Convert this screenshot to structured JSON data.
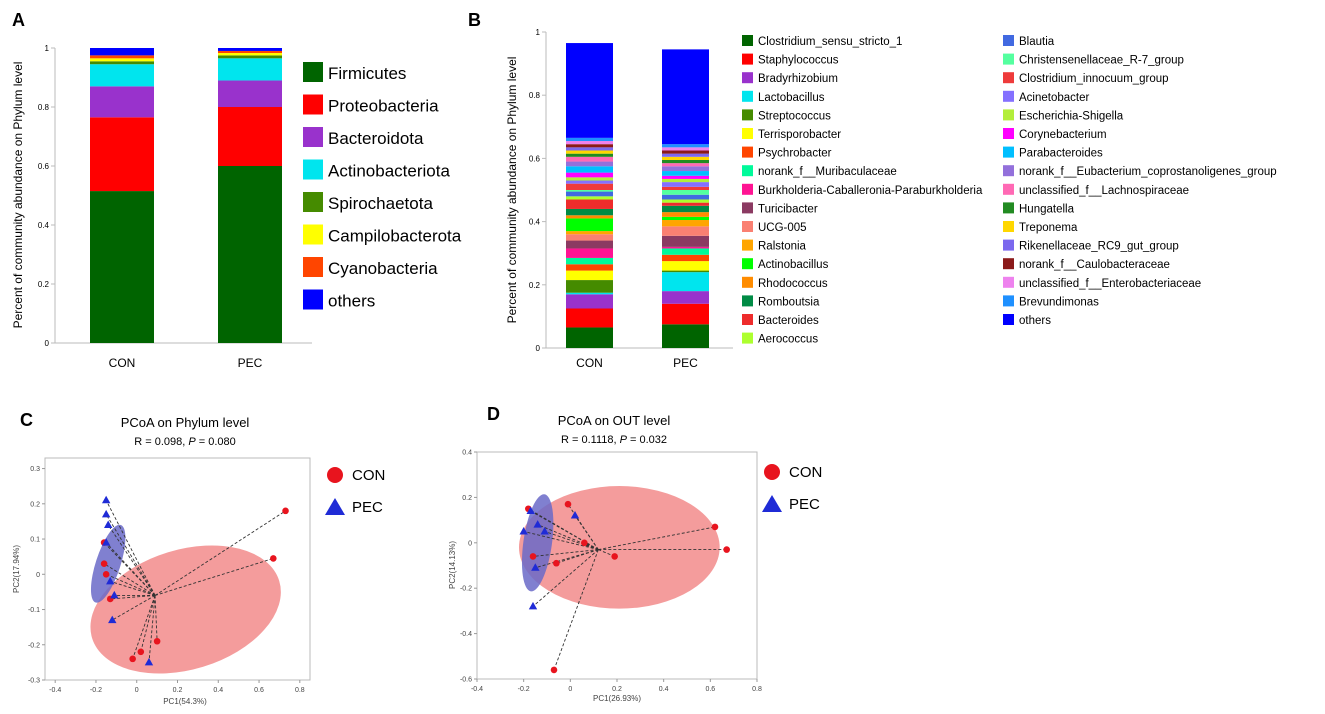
{
  "panels": {
    "A": {
      "letter": "A",
      "chart_data": {
        "type": "bar",
        "stacked": true,
        "title": "",
        "xlabel": "",
        "ylabel": "Percent of community abundance on Phylum level",
        "ylim": [
          0,
          1
        ],
        "yticks": [
          0,
          0.2,
          0.4,
          0.6,
          0.8,
          1
        ],
        "ytick_labels": [
          "0",
          "0.2",
          "0.4",
          "0.6",
          "0.8",
          "1"
        ],
        "categories": [
          "CON",
          "PEC"
        ],
        "series": [
          {
            "name": "Firmicutes",
            "color": "#006400",
            "values": [
              0.515,
              0.6
            ]
          },
          {
            "name": "Proteobacteria",
            "color": "#ff0000",
            "values": [
              0.25,
              0.2
            ]
          },
          {
            "name": "Bacteroidota",
            "color": "#9932cc",
            "values": [
              0.105,
              0.09
            ]
          },
          {
            "name": "Actinobacteriota",
            "color": "#00e5ee",
            "values": [
              0.075,
              0.075
            ]
          },
          {
            "name": "Spirochaetota",
            "color": "#458b00",
            "values": [
              0.01,
              0.01
            ]
          },
          {
            "name": "Campilobacterota",
            "color": "#ffff00",
            "values": [
              0.01,
              0.008
            ]
          },
          {
            "name": "Cyanobacteria",
            "color": "#ff4500",
            "values": [
              0.01,
              0.007
            ]
          },
          {
            "name": "others",
            "color": "#0000ff",
            "values": [
              0.025,
              0.01
            ]
          }
        ]
      }
    },
    "B": {
      "letter": "B",
      "chart_data": {
        "type": "bar",
        "stacked": true,
        "title": "",
        "xlabel": "",
        "ylabel": "Percent of community abundance on Phylum level",
        "ylim": [
          0,
          1
        ],
        "yticks": [
          0,
          0.2,
          0.4,
          0.6,
          0.8,
          1
        ],
        "ytick_labels": [
          "0",
          "0.2",
          "0.4",
          "0.6",
          "0.8",
          "1"
        ],
        "categories": [
          "CON",
          "PEC"
        ],
        "series": [
          {
            "name": "Clostridium_sensu_stricto_1",
            "color": "#006400",
            "values": [
              0.065,
              0.075
            ]
          },
          {
            "name": "Staphylococcus",
            "color": "#ff0000",
            "values": [
              0.06,
              0.065
            ]
          },
          {
            "name": "Bradyrhizobium",
            "color": "#9932cc",
            "values": [
              0.045,
              0.04
            ]
          },
          {
            "name": "Lactobacillus",
            "color": "#00e5ee",
            "values": [
              0.005,
              0.06
            ]
          },
          {
            "name": "Streptococcus",
            "color": "#458b00",
            "values": [
              0.04,
              0.005
            ]
          },
          {
            "name": "Terrisporobacter",
            "color": "#ffff00",
            "values": [
              0.03,
              0.03
            ]
          },
          {
            "name": "Psychrobacter",
            "color": "#ff4500",
            "values": [
              0.02,
              0.02
            ]
          },
          {
            "name": "norank_f__Muribaculaceae",
            "color": "#00fa9a",
            "values": [
              0.02,
              0.02
            ]
          },
          {
            "name": "Burkholderia-Caballeronia-Paraburkholderia",
            "color": "#ff1493",
            "values": [
              0.03,
              0.005
            ]
          },
          {
            "name": "Turicibacter",
            "color": "#8b3a62",
            "values": [
              0.025,
              0.035
            ]
          },
          {
            "name": "UCG-005",
            "color": "#fa8072",
            "values": [
              0.02,
              0.03
            ]
          },
          {
            "name": "Ralstonia",
            "color": "#ffa500",
            "values": [
              0.01,
              0.02
            ]
          },
          {
            "name": "Actinobacillus",
            "color": "#00ff00",
            "values": [
              0.04,
              0.01
            ]
          },
          {
            "name": "Rhodococcus",
            "color": "#ff8c00",
            "values": [
              0.01,
              0.015
            ]
          },
          {
            "name": "Romboutsia",
            "color": "#008b45",
            "values": [
              0.02,
              0.02
            ]
          },
          {
            "name": "Bacteroides",
            "color": "#ee2c2c",
            "values": [
              0.03,
              0.01
            ]
          },
          {
            "name": "Aerococcus",
            "color": "#adff2f",
            "values": [
              0.01,
              0.01
            ]
          },
          {
            "name": "Blautia",
            "color": "#4169e1",
            "values": [
              0.015,
              0.015
            ]
          },
          {
            "name": "Christensenellaceae_R-7_group",
            "color": "#54ff9f",
            "values": [
              0.005,
              0.015
            ]
          },
          {
            "name": "Clostridium_innocuum_group",
            "color": "#ee3b3b",
            "values": [
              0.02,
              0.01
            ]
          },
          {
            "name": "Acinetobacter",
            "color": "#8470ff",
            "values": [
              0.01,
              0.015
            ]
          },
          {
            "name": "Escherichia-Shigella",
            "color": "#b3ee3a",
            "values": [
              0.01,
              0.01
            ]
          },
          {
            "name": "Corynebacterium",
            "color": "#ff00ff",
            "values": [
              0.015,
              0.01
            ]
          },
          {
            "name": "Parabacteroides",
            "color": "#00bfff",
            "values": [
              0.02,
              0.015
            ]
          },
          {
            "name": "norank_f__Eubacterium_coprostanoligenes_group",
            "color": "#9370db",
            "values": [
              0.015,
              0.015
            ]
          },
          {
            "name": "unclassified_f__Lachnospiraceae",
            "color": "#ff69b4",
            "values": [
              0.015,
              0.01
            ]
          },
          {
            "name": "Hungatella",
            "color": "#228b22",
            "values": [
              0.01,
              0.01
            ]
          },
          {
            "name": "Treponema",
            "color": "#ffd700",
            "values": [
              0.01,
              0.01
            ]
          },
          {
            "name": "Rikenellaceae_RC9_gut_group",
            "color": "#7b68ee",
            "values": [
              0.01,
              0.01
            ]
          },
          {
            "name": "norank_f__Caulobacteraceae",
            "color": "#8b1a1a",
            "values": [
              0.01,
              0.01
            ]
          },
          {
            "name": "unclassified_f__Enterobacteriaceae",
            "color": "#ee82ee",
            "values": [
              0.01,
              0.01
            ]
          },
          {
            "name": "Brevundimonas",
            "color": "#1e90ff",
            "values": [
              0.01,
              0.01
            ]
          },
          {
            "name": "others",
            "color": "#0000ff",
            "values": [
              0.3,
              0.3
            ]
          }
        ]
      }
    },
    "C": {
      "letter": "C",
      "chart_data": {
        "type": "scatter",
        "title": "PCoA on Phylum level",
        "stat_r_label": "R = 0.098, ",
        "stat_p_label": "P",
        "stat_p_value": " = 0.080",
        "xlabel": "PC1(54.3%)",
        "ylabel": "PC2(17.94%)",
        "xlim": [
          -0.45,
          0.85
        ],
        "ylim": [
          -0.3,
          0.33
        ],
        "xticks": [
          -0.4,
          -0.2,
          0,
          0.2,
          0.4,
          0.6,
          0.8
        ],
        "xtick_labels": [
          "-0.4",
          "-0.2",
          "0",
          "0.2",
          "0.4",
          "0.6",
          "0.8"
        ],
        "yticks": [
          -0.3,
          -0.2,
          -0.1,
          0,
          0.1,
          0.2,
          0.3
        ],
        "ytick_labels": [
          "-0.3",
          "-0.2",
          "-0.1",
          "0",
          "0.1",
          "0.2",
          "0.3"
        ],
        "series": [
          {
            "name": "CON",
            "color": "#e8141e",
            "marker": "circle",
            "center": [
              0.09,
              -0.06
            ],
            "ellipse": {
              "cx": 0.24,
              "cy": -0.1,
              "rx": 0.48,
              "ry": 0.17,
              "angle_deg": 17,
              "color": "#f28b8b"
            },
            "points": [
              [
                0.73,
                0.18
              ],
              [
                0.67,
                0.045
              ],
              [
                -0.16,
                0.09
              ],
              [
                -0.15,
                0.0
              ],
              [
                -0.13,
                -0.07
              ],
              [
                -0.16,
                0.03
              ],
              [
                -0.02,
                -0.24
              ],
              [
                0.02,
                -0.22
              ],
              [
                0.1,
                -0.19
              ]
            ]
          },
          {
            "name": "PEC",
            "color": "#1f2bd6",
            "marker": "triangle",
            "center": [
              0.09,
              -0.06
            ],
            "ellipse": {
              "cx": -0.14,
              "cy": 0.03,
              "rx": 0.2,
              "ry": 0.035,
              "angle_deg": 72,
              "color": "#6a6ac8"
            },
            "points": [
              [
                -0.15,
                0.21
              ],
              [
                -0.15,
                0.17
              ],
              [
                -0.14,
                0.14
              ],
              [
                -0.15,
                0.09
              ],
              [
                -0.13,
                -0.02
              ],
              [
                -0.11,
                -0.06
              ],
              [
                -0.12,
                -0.13
              ],
              [
                0.06,
                -0.25
              ]
            ]
          }
        ]
      }
    },
    "D": {
      "letter": "D",
      "chart_data": {
        "type": "scatter",
        "title": "PCoA on OUT level",
        "stat_r_label": "R = 0.1118, ",
        "stat_p_label": "P",
        "stat_p_value": " = 0.032",
        "xlabel": "PC1(26.93%)",
        "ylabel": "PC2(14.13%)",
        "xlim": [
          -0.4,
          0.8
        ],
        "ylim": [
          -0.6,
          0.4
        ],
        "xticks": [
          -0.4,
          -0.2,
          0,
          0.2,
          0.4,
          0.6,
          0.8
        ],
        "xtick_labels": [
          "-0.4",
          "-0.2",
          "0",
          "0.2",
          "0.4",
          "0.6",
          "0.8"
        ],
        "yticks": [
          -0.6,
          -0.4,
          -0.2,
          0,
          0.2,
          0.4
        ],
        "ytick_labels": [
          "-0.6",
          "-0.4",
          "-0.2",
          "0",
          "0.2",
          "0.4"
        ],
        "series": [
          {
            "name": "CON",
            "color": "#e8141e",
            "marker": "circle",
            "center": [
              0.12,
              -0.03
            ],
            "ellipse": {
              "cx": 0.21,
              "cy": -0.02,
              "rx": 0.43,
              "ry": 0.27,
              "angle_deg": 0,
              "color": "#f28b8b"
            },
            "points": [
              [
                0.62,
                0.07
              ],
              [
                0.67,
                -0.03
              ],
              [
                -0.01,
                0.17
              ],
              [
                -0.18,
                0.15
              ],
              [
                0.06,
                0.0
              ],
              [
                0.19,
                -0.06
              ],
              [
                -0.06,
                -0.09
              ],
              [
                -0.16,
                -0.06
              ],
              [
                -0.07,
                -0.56
              ]
            ]
          },
          {
            "name": "PEC",
            "color": "#1f2bd6",
            "marker": "triangle",
            "center": [
              0.12,
              -0.03
            ],
            "ellipse": {
              "cx": -0.14,
              "cy": 0.0,
              "rx": 0.21,
              "ry": 0.063,
              "angle_deg": 82,
              "color": "#6a6ac8"
            },
            "points": [
              [
                -0.17,
                0.14
              ],
              [
                -0.14,
                0.08
              ],
              [
                -0.2,
                0.05
              ],
              [
                -0.11,
                0.05
              ],
              [
                0.02,
                0.12
              ],
              [
                -0.15,
                -0.11
              ],
              [
                -0.16,
                -0.28
              ]
            ]
          }
        ]
      }
    }
  }
}
